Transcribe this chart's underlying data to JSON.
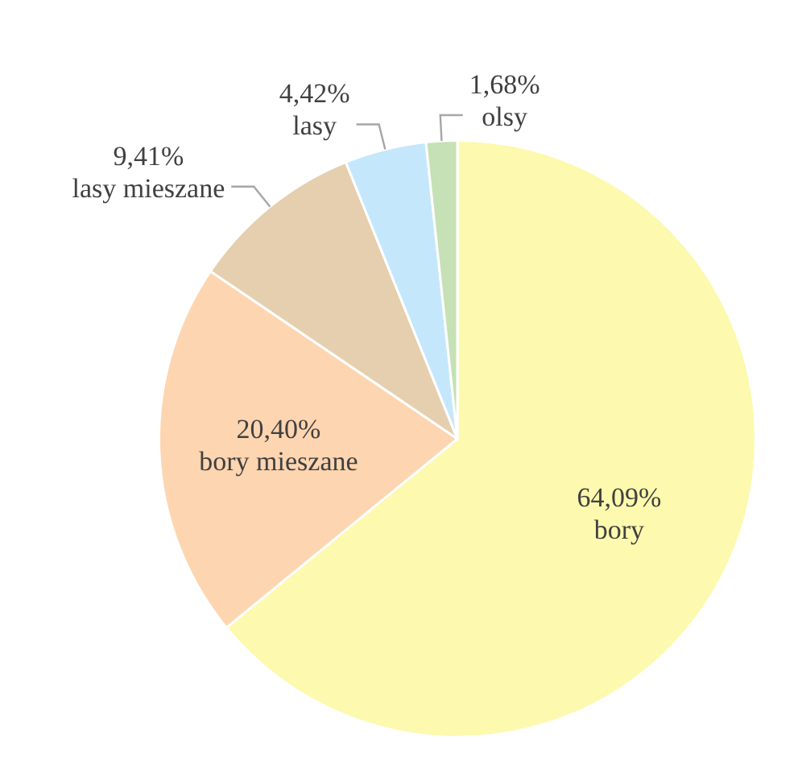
{
  "chart_data": {
    "type": "pie",
    "categories": [
      "bory",
      "bory mieszane",
      "lasy mieszane",
      "lasy",
      "olsy"
    ],
    "values": [
      64.09,
      20.4,
      9.41,
      4.42,
      1.68
    ],
    "value_labels": [
      "64,09%",
      "20,40%",
      "9,41%",
      "4,42%",
      "1,68%"
    ],
    "colors": [
      "#fdf9ae",
      "#fdd5b0",
      "#e5cfae",
      "#c4e7fb",
      "#c5e1b5"
    ],
    "legend": false
  }
}
